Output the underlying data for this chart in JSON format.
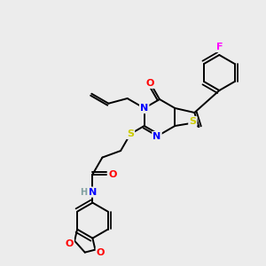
{
  "bg_color": "#ececec",
  "bond_color": "#000000",
  "colors": {
    "N": "#0000ff",
    "O": "#ff0000",
    "S": "#cccc00",
    "F": "#ff00ff",
    "H": "#7f9f9f",
    "C": "#000000"
  }
}
